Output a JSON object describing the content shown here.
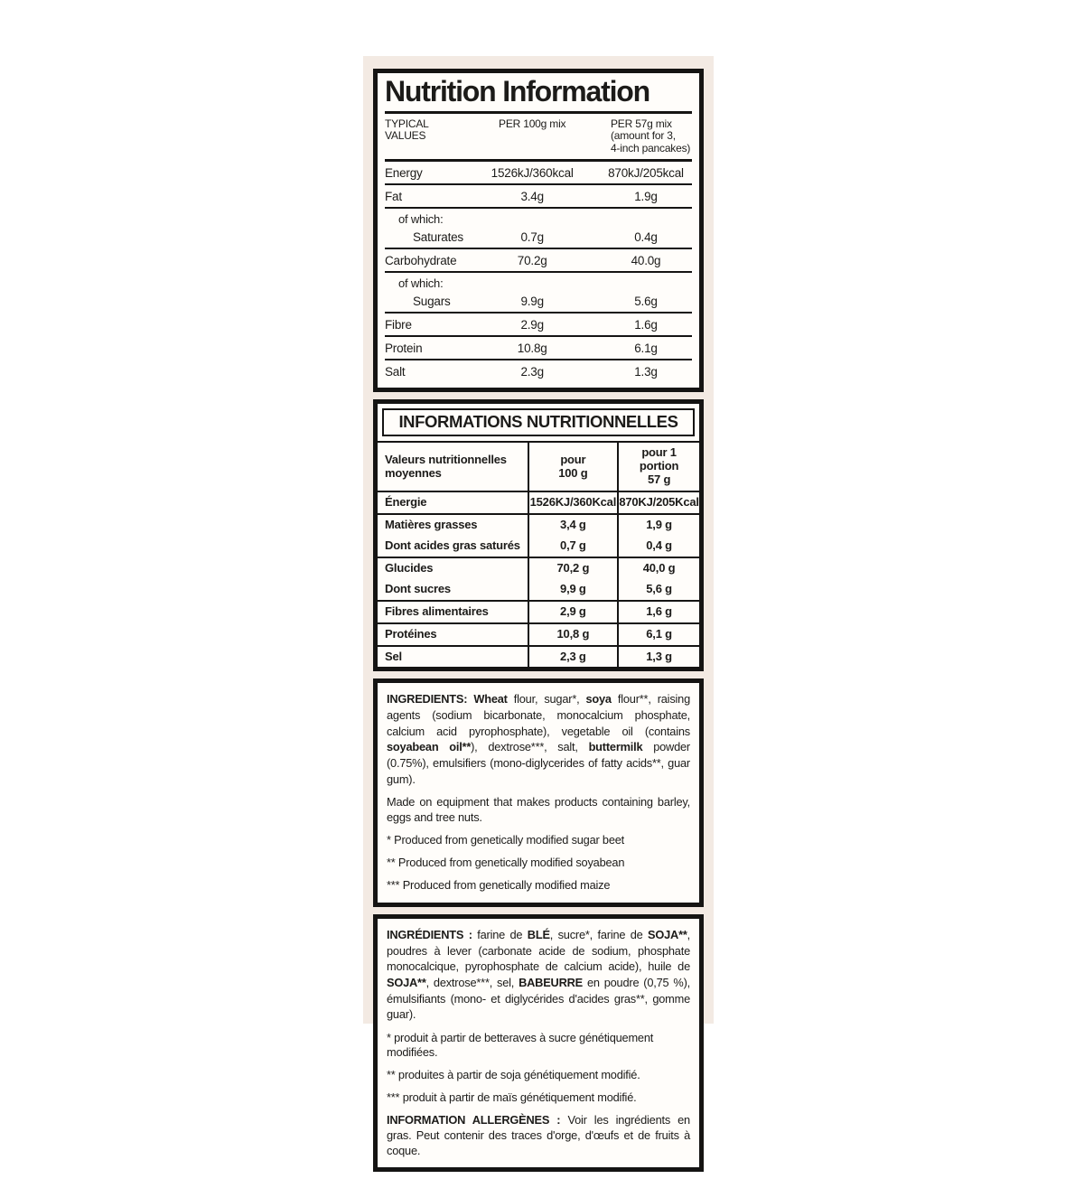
{
  "colors": {
    "page_bg": "#ffffff",
    "backdrop_bg": "#f3eae3",
    "label_bg": "#fffdfa",
    "border": "#151413",
    "text": "#1c1b19"
  },
  "en_nutrition": {
    "title": "Nutrition Information",
    "header": {
      "col1_line1": "TYPICAL",
      "col1_line2": "VALUES",
      "col2": "PER 100g mix",
      "col3_line1": "PER 57g mix",
      "col3_line2": "(amount for 3,",
      "col3_line3": "4-inch pancakes)"
    },
    "rows": [
      {
        "label": "Energy",
        "per100": "1526kJ/360kcal",
        "per57": "870kJ/205kcal"
      },
      {
        "label": "Fat",
        "per100": "3.4g",
        "per57": "1.9g"
      },
      {
        "label": "of which:"
      },
      {
        "label": "Saturates",
        "per100": "0.7g",
        "per57": "0.4g"
      },
      {
        "label": "Carbohydrate",
        "per100": "70.2g",
        "per57": "40.0g"
      },
      {
        "label": "of which:"
      },
      {
        "label": "Sugars",
        "per100": "9.9g",
        "per57": "5.6g"
      },
      {
        "label": "Fibre",
        "per100": "2.9g",
        "per57": "1.6g"
      },
      {
        "label": "Protein",
        "per100": "10.8g",
        "per57": "6.1g"
      },
      {
        "label": "Salt",
        "per100": "2.3g",
        "per57": "1.3g"
      }
    ]
  },
  "fr_nutrition": {
    "title": "INFORMATIONS NUTRITIONNELLES",
    "header": {
      "col1_line1": "Valeurs nutritionnelles",
      "col1_line2": "moyennes",
      "col2_line1": "pour",
      "col2_line2": "100 g",
      "col3_line1": "pour 1 portion",
      "col3_line2": "57 g"
    },
    "rows": [
      {
        "label": "Énergie",
        "per100": "1526KJ/360Kcal",
        "per57": "870KJ/205Kcal"
      },
      {
        "label": "Matières grasses",
        "per100": "3,4 g",
        "per57": "1,9 g"
      },
      {
        "label": "Dont acides gras saturés",
        "per100": "0,7 g",
        "per57": "0,4 g"
      },
      {
        "label": "Glucides",
        "per100": "70,2 g",
        "per57": "40,0 g"
      },
      {
        "label": "Dont sucres",
        "per100": "9,9 g",
        "per57": "5,6 g"
      },
      {
        "label": "Fibres alimentaires",
        "per100": "2,9 g",
        "per57": "1,6 g"
      },
      {
        "label": "Protéines",
        "per100": "10,8 g",
        "per57": "6,1 g"
      },
      {
        "label": "Sel",
        "per100": "2,3 g",
        "per57": "1,3 g"
      }
    ]
  },
  "en_ingredients": {
    "paragraph": [
      {
        "t": "INGREDIENTS: ",
        "b": true
      },
      {
        "t": "Wheat",
        "b": true
      },
      {
        "t": " flour, sugar*, ",
        "b": false
      },
      {
        "t": "soya",
        "b": true
      },
      {
        "t": " flour**, raising agents (sodium bicarbonate, monocalcium phosphate, calcium acid pyrophosphate), vegetable oil (contains ",
        "b": false
      },
      {
        "t": "soyabean oil**",
        "b": true
      },
      {
        "t": "), dextrose***, salt, ",
        "b": false
      },
      {
        "t": "buttermilk",
        "b": true
      },
      {
        "t": " powder (0.75%), emulsifiers (mono-diglycerides of fatty acids**, guar gum).",
        "b": false
      }
    ],
    "equipment_note": "Made on equipment that makes products containing barley, eggs and tree nuts.",
    "footnotes": [
      "* Produced from genetically modified sugar beet",
      "** Produced from genetically modified soyabean",
      "*** Produced from genetically modified maize"
    ]
  },
  "fr_ingredients": {
    "paragraph": [
      {
        "t": "INGRÉDIENTS : ",
        "b": true
      },
      {
        "t": "farine de ",
        "b": false
      },
      {
        "t": "BLÉ",
        "b": true
      },
      {
        "t": ", sucre*, farine de ",
        "b": false
      },
      {
        "t": "SOJA**",
        "b": true
      },
      {
        "t": ", poudres à lever (carbonate acide de sodium, phosphate monocalcique, pyrophosphate de calcium acide), huile de ",
        "b": false
      },
      {
        "t": "SOJA**",
        "b": true
      },
      {
        "t": ", dextrose***, sel, ",
        "b": false
      },
      {
        "t": "BABEURRE",
        "b": true
      },
      {
        "t": " en poudre (0,75 %), émulsifiants (mono- et diglycérides d'acides gras**, gomme guar).",
        "b": false
      }
    ],
    "footnotes": [
      "* produit à partir de betteraves à sucre génétiquement modifiées.",
      "** produites à partir de soja génétiquement modifié.",
      "*** produit à partir de maïs génétiquement modifié."
    ],
    "allergen": [
      {
        "t": "INFORMATION ALLERGÈNES : ",
        "b": true
      },
      {
        "t": "Voir les ingrédients en gras. Peut contenir des traces d'orge, d'œufs et de fruits à coque.",
        "b": false
      }
    ]
  }
}
